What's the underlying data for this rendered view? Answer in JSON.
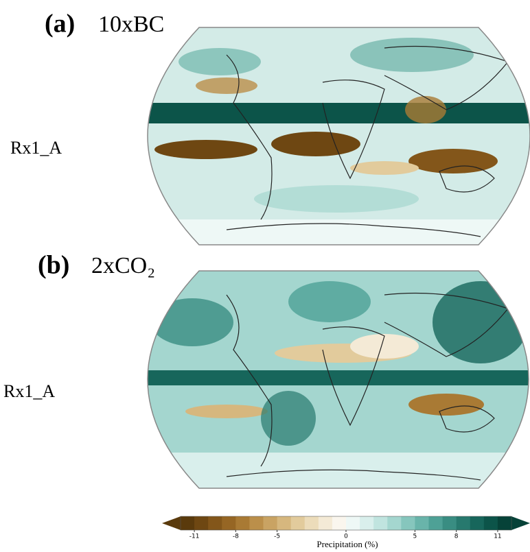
{
  "panels": [
    {
      "letter": "(a)",
      "title": "10xBC",
      "row_label": "Rx1_A"
    },
    {
      "letter": "(b)",
      "title": "2xCO₂",
      "row_label": "Rx1_A"
    }
  ],
  "colorbar": {
    "label": "Precipitation (%)",
    "range": [
      -12,
      12
    ],
    "ticks": [
      -11,
      -8,
      -5,
      0,
      5,
      8,
      11
    ],
    "colors": [
      "#5a3a0c",
      "#6e4712",
      "#83561a",
      "#966624",
      "#a97a34",
      "#bb8f4a",
      "#c9a363",
      "#d6b77e",
      "#e2cb9c",
      "#ecdcba",
      "#f4ead6",
      "#faf6ee",
      "#eef8f6",
      "#d9efec",
      "#c0e4df",
      "#a4d6cf",
      "#86c6bd",
      "#69b4aa",
      "#4ea196",
      "#398d82",
      "#27796e",
      "#17665b",
      "#0c5449",
      "#064238"
    ]
  }
}
